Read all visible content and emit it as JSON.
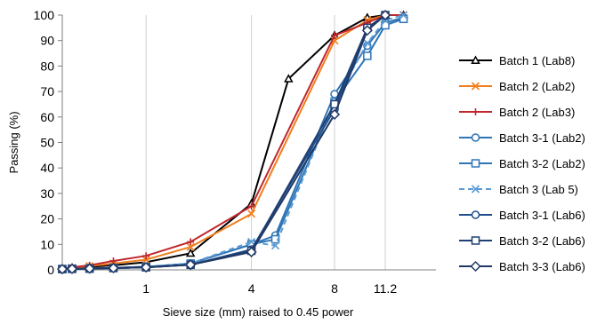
{
  "chart_data": {
    "type": "line",
    "xlabel": "Sieve size (mm) raised to 0.45 power",
    "ylabel": "Passing (%)",
    "x_scale": "power 0.45",
    "xlim": [
      0.075,
      15
    ],
    "ylim": [
      0,
      100
    ],
    "x_ticks": [
      {
        "value": 1,
        "label": "1"
      },
      {
        "value": 4,
        "label": "4"
      },
      {
        "value": 8,
        "label": "8"
      },
      {
        "value": 11.2,
        "label": "11.2"
      }
    ],
    "y_ticks": [
      0,
      10,
      20,
      30,
      40,
      50,
      60,
      70,
      80,
      90,
      100
    ],
    "grid": {
      "vertical": true,
      "horizontal": false
    },
    "legend_position": "right",
    "series": [
      {
        "name": "Batch 1 (Lab8)",
        "color": "#000000",
        "marker": "triangle",
        "dash": "solid",
        "x": [
          0.075,
          0.125,
          0.25,
          0.5,
          1,
          2,
          4,
          5.6,
          8,
          10,
          11.2,
          12.5
        ],
        "y": [
          0.5,
          0.8,
          1.2,
          1.8,
          3,
          6.5,
          26,
          75,
          92,
          99,
          100,
          100
        ]
      },
      {
        "name": "Batch 2 (Lab2)",
        "color": "#f07f1e",
        "marker": "x",
        "dash": "solid",
        "x": [
          0.075,
          0.125,
          0.25,
          0.5,
          1,
          2,
          4,
          8,
          10,
          11.2,
          12.5
        ],
        "y": [
          0.5,
          0.8,
          1.5,
          2.5,
          4,
          9,
          22,
          90,
          98,
          100,
          100
        ]
      },
      {
        "name": "Batch 2 (Lab3)",
        "color": "#c0272d",
        "marker": "plus",
        "dash": "solid",
        "x": [
          0.075,
          0.125,
          0.25,
          0.5,
          1,
          2,
          4,
          8,
          10,
          11.2,
          12.5
        ],
        "y": [
          0.5,
          1,
          1.8,
          3.5,
          5.5,
          11,
          25,
          92,
          97,
          100,
          100
        ]
      },
      {
        "name": "Batch 3-1 (Lab2)",
        "color": "#2e75b6",
        "marker": "circle",
        "dash": "solid",
        "x": [
          0.075,
          0.125,
          0.25,
          0.5,
          1,
          2,
          4,
          5,
          8,
          10,
          11.2,
          12.5
        ],
        "y": [
          0.3,
          0.4,
          0.5,
          0.8,
          1.2,
          2.5,
          10,
          13.5,
          69,
          88,
          97,
          99
        ]
      },
      {
        "name": "Batch 3-2 (Lab2)",
        "color": "#2e75b6",
        "marker": "square",
        "dash": "solid",
        "x": [
          0.075,
          0.125,
          0.25,
          0.5,
          1,
          2,
          4,
          5,
          8,
          10,
          11.2,
          12.5
        ],
        "y": [
          0.3,
          0.4,
          0.5,
          0.8,
          1.2,
          2.5,
          10,
          12,
          66,
          84,
          96,
          98.5
        ]
      },
      {
        "name": "Batch 3 (Lab 5)",
        "color": "#5b9bd5",
        "marker": "x",
        "dash": "dashed",
        "x": [
          0.075,
          0.125,
          0.25,
          0.5,
          1,
          2,
          4,
          5,
          8,
          10,
          11.2,
          12.5
        ],
        "y": [
          0.2,
          0.3,
          0.4,
          0.6,
          1,
          2.5,
          11,
          9.5,
          66,
          89,
          98,
          100
        ]
      },
      {
        "name": "Batch 3-1 (Lab6)",
        "color": "#1f4e8c",
        "marker": "circle",
        "dash": "solid",
        "x": [
          0.075,
          0.125,
          0.25,
          0.5,
          1,
          2,
          4,
          8,
          10,
          11.2
        ],
        "y": [
          0.3,
          0.4,
          0.5,
          0.7,
          1,
          2,
          8,
          63,
          95,
          100
        ]
      },
      {
        "name": "Batch 3-2 (Lab6)",
        "color": "#1f3f73",
        "marker": "square",
        "dash": "solid",
        "x": [
          0.075,
          0.125,
          0.25,
          0.5,
          1,
          2,
          4,
          8,
          10,
          11.2
        ],
        "y": [
          0.3,
          0.4,
          0.5,
          0.7,
          1,
          2,
          7.5,
          65,
          95,
          100
        ]
      },
      {
        "name": "Batch 3-3 (Lab6)",
        "color": "#203864",
        "marker": "diamond",
        "dash": "solid",
        "x": [
          0.075,
          0.125,
          0.25,
          0.5,
          1,
          2,
          4,
          8,
          10,
          11.2
        ],
        "y": [
          0.3,
          0.4,
          0.5,
          0.7,
          1,
          2,
          7,
          61,
          94,
          100
        ]
      }
    ]
  }
}
